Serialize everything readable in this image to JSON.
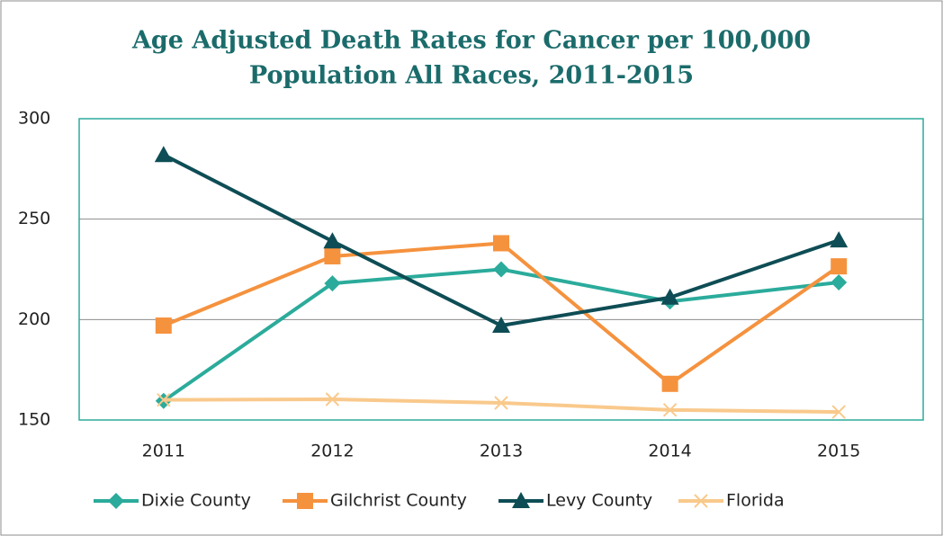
{
  "chart_data": {
    "type": "line",
    "title": [
      "Age Adjusted Death Rates for Cancer per 100,000",
      "Population All Races, 2011-2015"
    ],
    "categories": [
      "2011",
      "2012",
      "2013",
      "2014",
      "2015"
    ],
    "series": [
      {
        "name": "Dixie County",
        "color": "#2bab9b",
        "marker": "diamond",
        "values": [
          159.5,
          218,
          225,
          209,
          218.5
        ]
      },
      {
        "name": "Gilchrist County",
        "color": "#f5923e",
        "marker": "square",
        "values": [
          197,
          231.5,
          238,
          168,
          226.5
        ]
      },
      {
        "name": "Levy County",
        "color": "#0e4d55",
        "marker": "triangle",
        "values": [
          282,
          239,
          197,
          211,
          239.5
        ]
      },
      {
        "name": "Florida",
        "color": "#f9c98c",
        "marker": "x",
        "values": [
          160,
          160.3,
          158.5,
          155,
          154
        ]
      }
    ],
    "ylim": [
      150,
      300
    ],
    "yticks": [
      150,
      200,
      250,
      300
    ],
    "grid": true,
    "legend": "bottom"
  }
}
